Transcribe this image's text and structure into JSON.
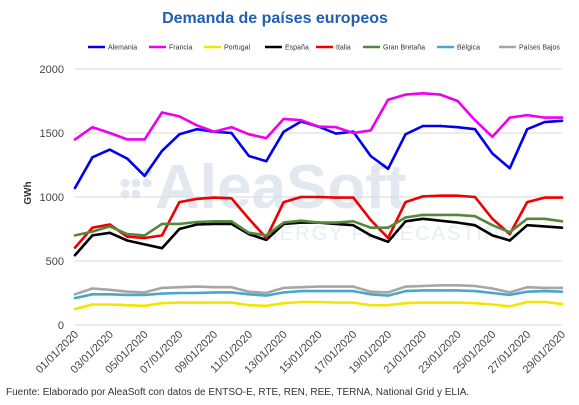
{
  "footer": {
    "source": "Fuente: Elaborado por AleaSoft con datos de ENTSO-E, RTE, REN, REE, TERNA, National Grid y ELIA."
  },
  "watermark": {
    "brand": "AleaSoft",
    "tagline": "ENERGY FORECASTING"
  },
  "chart_data": {
    "type": "line",
    "title": "Demanda de países europeos",
    "xlabel": "",
    "ylabel": "GWh",
    "ylim": [
      0,
      2000
    ],
    "yticks": [
      0,
      500,
      1000,
      1500,
      2000
    ],
    "grid": true,
    "legend_position": "top",
    "x": [
      "01/01/2020",
      "02/01/2020",
      "03/01/2020",
      "04/01/2020",
      "05/01/2020",
      "06/01/2020",
      "07/01/2020",
      "08/01/2020",
      "09/01/2020",
      "10/01/2020",
      "11/01/2020",
      "12/01/2020",
      "13/01/2020",
      "14/01/2020",
      "15/01/2020",
      "16/01/2020",
      "17/01/2020",
      "18/01/2020",
      "19/01/2020",
      "20/01/2020",
      "21/01/2020",
      "22/01/2020",
      "23/01/2020",
      "24/01/2020",
      "25/01/2020",
      "26/01/2020",
      "27/01/2020",
      "28/01/2020",
      "29/01/2020"
    ],
    "xticks": [
      "01/01/2020",
      "03/01/2020",
      "05/01/2020",
      "07/01/2020",
      "09/01/2020",
      "11/01/2020",
      "13/01/2020",
      "15/01/2020",
      "17/01/2020",
      "19/01/2020",
      "21/01/2020",
      "23/01/2020",
      "25/01/2020",
      "27/01/2020",
      "29/01/2020"
    ],
    "series": [
      {
        "name": "Alemania",
        "color": "#0000ee",
        "values": [
          1070,
          1310,
          1370,
          1300,
          1165,
          1360,
          1490,
          1530,
          1510,
          1500,
          1320,
          1280,
          1510,
          1590,
          1550,
          1495,
          1510,
          1320,
          1220,
          1490,
          1555,
          1555,
          1545,
          1530,
          1340,
          1225,
          1530,
          1585,
          1595
        ]
      },
      {
        "name": "Francia",
        "color": "#ee00ee",
        "values": [
          1450,
          1545,
          1500,
          1450,
          1450,
          1660,
          1630,
          1560,
          1510,
          1545,
          1490,
          1460,
          1610,
          1600,
          1550,
          1545,
          1500,
          1520,
          1760,
          1800,
          1810,
          1800,
          1750,
          1600,
          1470,
          1620,
          1640,
          1620,
          1620
        ]
      },
      {
        "name": "Portugal",
        "color": "#f2e600",
        "values": [
          125,
          160,
          160,
          155,
          150,
          170,
          175,
          175,
          175,
          175,
          155,
          150,
          170,
          180,
          180,
          175,
          175,
          155,
          155,
          170,
          175,
          175,
          175,
          170,
          160,
          145,
          180,
          180,
          165
        ]
      },
      {
        "name": "España",
        "color": "#000000",
        "values": [
          545,
          700,
          720,
          660,
          630,
          600,
          750,
          785,
          790,
          790,
          710,
          665,
          790,
          800,
          800,
          790,
          780,
          700,
          650,
          810,
          830,
          815,
          800,
          780,
          700,
          660,
          780,
          770,
          760
        ]
      },
      {
        "name": "Italia",
        "color": "#ee0000",
        "values": [
          605,
          760,
          785,
          690,
          680,
          700,
          960,
          985,
          995,
          990,
          830,
          680,
          960,
          1000,
          1000,
          995,
          995,
          820,
          680,
          960,
          1005,
          1010,
          1010,
          1000,
          830,
          710,
          960,
          995,
          995
        ]
      },
      {
        "name": "Gran Bretaña",
        "color": "#55883a",
        "values": [
          700,
          730,
          770,
          710,
          700,
          790,
          790,
          805,
          810,
          810,
          720,
          700,
          800,
          815,
          800,
          800,
          810,
          760,
          760,
          840,
          860,
          860,
          860,
          850,
          780,
          725,
          830,
          830,
          810
        ]
      },
      {
        "name": "Bélgica",
        "color": "#4aa7c7",
        "values": [
          210,
          240,
          240,
          235,
          235,
          245,
          250,
          250,
          255,
          255,
          240,
          230,
          255,
          265,
          265,
          265,
          265,
          240,
          230,
          265,
          270,
          270,
          270,
          265,
          250,
          235,
          260,
          265,
          260
        ]
      },
      {
        "name": "Países Bajos",
        "color": "#a6a6a6",
        "values": [
          240,
          285,
          275,
          260,
          255,
          290,
          295,
          300,
          295,
          295,
          260,
          250,
          290,
          295,
          300,
          300,
          300,
          260,
          255,
          300,
          305,
          310,
          310,
          305,
          285,
          255,
          295,
          290,
          290
        ]
      }
    ]
  }
}
